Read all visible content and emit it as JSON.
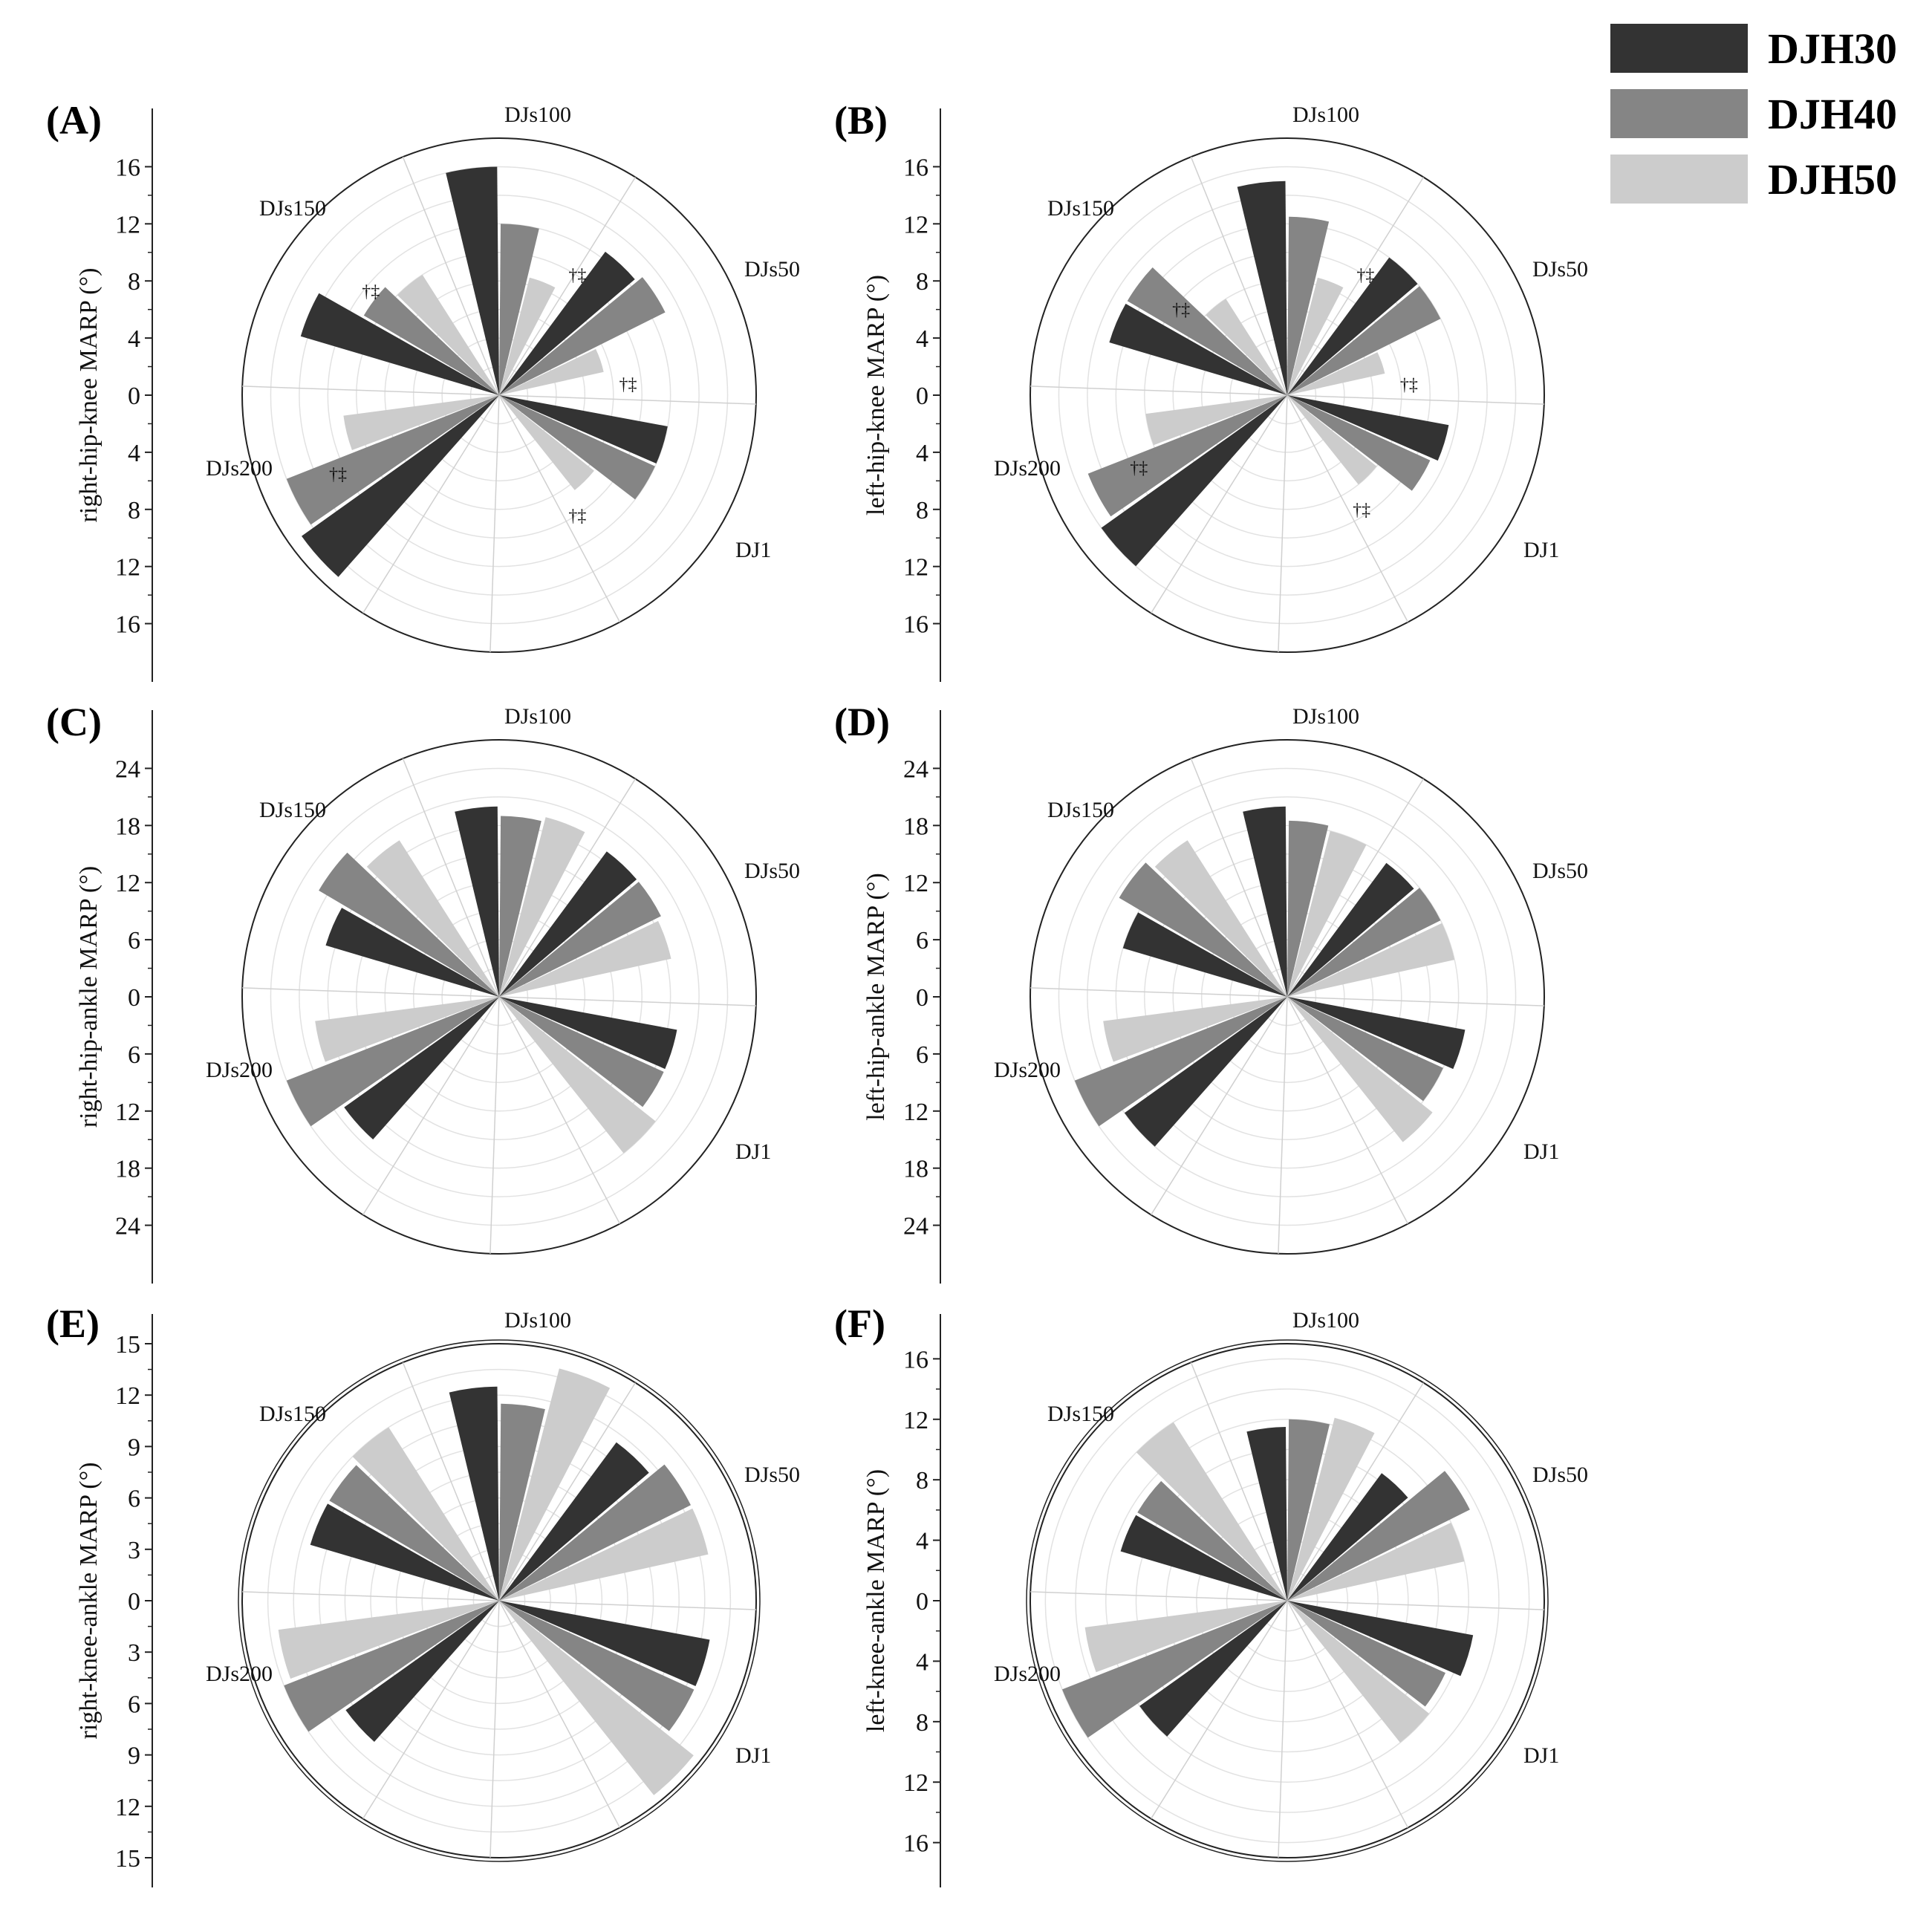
{
  "legend": {
    "items": [
      {
        "label": "DJH30",
        "color": "#333333"
      },
      {
        "label": "DJH40",
        "color": "#858585"
      },
      {
        "label": "DJH50",
        "color": "#cccccc"
      }
    ]
  },
  "chart_data": [
    {
      "type": "polar-bar",
      "panel_label": "(A)",
      "ylabel": "right-hip-knee MARP (°)",
      "categories": [
        "DJ1",
        "DJs50",
        "DJs100",
        "DJs150",
        "DJs200"
      ],
      "rmax": 18,
      "ticks": [
        16,
        12,
        8,
        4,
        0,
        4,
        8,
        12,
        16
      ],
      "series": [
        {
          "name": "DJH30",
          "values": [
            12,
            12.5,
            16,
            14.5,
            17
          ]
        },
        {
          "name": "DJH40",
          "values": [
            12,
            13,
            12,
            11,
            16
          ]
        },
        {
          "name": "DJH50",
          "values": [
            8.5,
            7.5,
            8.5,
            10,
            11
          ]
        }
      ],
      "annotations": [
        "†‡",
        "†‡",
        "†‡",
        "†‡",
        "†‡"
      ]
    },
    {
      "type": "polar-bar",
      "panel_label": "(B)",
      "ylabel": "left-hip-knee MARP (°)",
      "categories": [
        "DJ1",
        "DJs50",
        "DJs100",
        "DJs150",
        "DJs200"
      ],
      "rmax": 18,
      "ticks": [
        16,
        12,
        8,
        4,
        0,
        4,
        8,
        12,
        16
      ],
      "series": [
        {
          "name": "DJH30",
          "values": [
            11.5,
            12,
            15,
            13,
            16
          ]
        },
        {
          "name": "DJH40",
          "values": [
            11,
            12,
            12.5,
            13,
            15
          ]
        },
        {
          "name": "DJH50",
          "values": [
            8,
            7,
            8.5,
            8,
            10
          ]
        }
      ],
      "annotations": [
        "†‡",
        "†‡",
        "†‡",
        "†‡",
        "†‡"
      ]
    },
    {
      "type": "polar-bar",
      "panel_label": "(C)",
      "ylabel": "right-hip-ankle MARP (°)",
      "categories": [
        "DJ1",
        "DJs50",
        "DJs100",
        "DJs150",
        "DJs200"
      ],
      "rmax": 27,
      "ticks": [
        24,
        18,
        12,
        6,
        0,
        6,
        12,
        18,
        24
      ],
      "series": [
        {
          "name": "DJH30",
          "values": [
            19,
            19,
            20,
            19,
            20
          ]
        },
        {
          "name": "DJH40",
          "values": [
            19,
            19,
            19,
            22,
            24
          ]
        },
        {
          "name": "DJH50",
          "values": [
            21,
            18.5,
            19.5,
            19.5,
            19.5
          ]
        }
      ]
    },
    {
      "type": "polar-bar",
      "panel_label": "(D)",
      "ylabel": "left-hip-ankle MARP (°)",
      "categories": [
        "DJ1",
        "DJs50",
        "DJs100",
        "DJs150",
        "DJs200"
      ],
      "rmax": 27,
      "ticks": [
        24,
        18,
        12,
        6,
        0,
        6,
        12,
        18,
        24
      ],
      "series": [
        {
          "name": "DJH30",
          "values": [
            19,
            17.5,
            20,
            18,
            21
          ]
        },
        {
          "name": "DJH40",
          "values": [
            18,
            18,
            18.5,
            20.5,
            24
          ]
        },
        {
          "name": "DJH50",
          "values": [
            19.5,
            18,
            18,
            19.5,
            19.5
          ]
        }
      ]
    },
    {
      "type": "polar-bar",
      "panel_label": "(E)",
      "ylabel": "right-knee-ankle MARP (°)",
      "categories": [
        "DJ1",
        "DJs50",
        "DJs100",
        "DJs150",
        "DJs200"
      ],
      "rmax": 15,
      "ticks": [
        15,
        12,
        9,
        6,
        3,
        0,
        3,
        6,
        9,
        12,
        15
      ],
      "series": [
        {
          "name": "DJH30",
          "values": [
            12.5,
            11.5,
            12.5,
            11.5,
            11
          ]
        },
        {
          "name": "DJH40",
          "values": [
            12.5,
            12.5,
            11.5,
            11.5,
            13.5
          ]
        },
        {
          "name": "DJH50",
          "values": [
            14.5,
            12.5,
            14,
            12,
            13
          ]
        }
      ]
    },
    {
      "type": "polar-bar",
      "panel_label": "(F)",
      "ylabel": "left-knee-ankle MARP (°)",
      "categories": [
        "DJ1",
        "DJs50",
        "DJs100",
        "DJs150",
        "DJs200"
      ],
      "rmax": 17,
      "ticks": [
        16,
        12,
        8,
        4,
        0,
        4,
        8,
        12,
        16
      ],
      "series": [
        {
          "name": "DJH30",
          "values": [
            12.5,
            10.5,
            11.5,
            11.5,
            12
          ]
        },
        {
          "name": "DJH40",
          "values": [
            11.5,
            13.5,
            12,
            11.5,
            16
          ]
        },
        {
          "name": "DJH50",
          "values": [
            12,
            12,
            12.5,
            14,
            13.5
          ]
        }
      ]
    }
  ]
}
